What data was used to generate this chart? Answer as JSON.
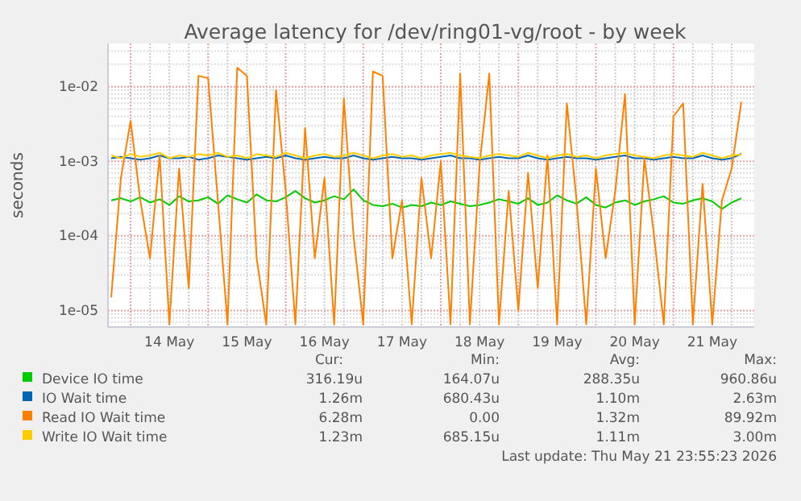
{
  "chart_data": {
    "type": "line",
    "title": "Average latency for /dev/ring01-vg/root - by week",
    "ylabel": "seconds",
    "log": true,
    "grid": true,
    "legend": "bottom",
    "xlim": [
      "2026-05-13T17:00",
      "2026-05-22T01:00"
    ],
    "xticks": [
      {
        "value": "2026-05-14T12:00",
        "label": "14 May"
      },
      {
        "value": "2026-05-15T12:00",
        "label": "15 May"
      },
      {
        "value": "2026-05-16T12:00",
        "label": "16 May"
      },
      {
        "value": "2026-05-17T12:00",
        "label": "17 May"
      },
      {
        "value": "2026-05-18T12:00",
        "label": "18 May"
      },
      {
        "value": "2026-05-19T12:00",
        "label": "19 May"
      },
      {
        "value": "2026-05-20T12:00",
        "label": "20 May"
      },
      {
        "value": "2026-05-21T12:00",
        "label": "21 May"
      }
    ],
    "ylim": [
      6e-06,
      0.038
    ],
    "yticks": [
      {
        "value": 1e-05,
        "label": "1e-05"
      },
      {
        "value": 0.0001,
        "label": "1e-04"
      },
      {
        "value": 0.001,
        "label": "1e-03"
      },
      {
        "value": 0.01,
        "label": "1e-02"
      }
    ],
    "x": [
      "2026-05-13T18:00",
      "2026-05-13T21:00",
      "2026-05-14T00:00",
      "2026-05-14T03:00",
      "2026-05-14T06:00",
      "2026-05-14T09:00",
      "2026-05-14T12:00",
      "2026-05-14T15:00",
      "2026-05-14T18:00",
      "2026-05-14T21:00",
      "2026-05-15T00:00",
      "2026-05-15T03:00",
      "2026-05-15T06:00",
      "2026-05-15T09:00",
      "2026-05-15T12:00",
      "2026-05-15T15:00",
      "2026-05-15T18:00",
      "2026-05-15T21:00",
      "2026-05-16T00:00",
      "2026-05-16T03:00",
      "2026-05-16T06:00",
      "2026-05-16T09:00",
      "2026-05-16T12:00",
      "2026-05-16T15:00",
      "2026-05-16T18:00",
      "2026-05-16T21:00",
      "2026-05-17T00:00",
      "2026-05-17T03:00",
      "2026-05-17T06:00",
      "2026-05-17T09:00",
      "2026-05-17T12:00",
      "2026-05-17T15:00",
      "2026-05-17T18:00",
      "2026-05-17T21:00",
      "2026-05-18T00:00",
      "2026-05-18T03:00",
      "2026-05-18T06:00",
      "2026-05-18T09:00",
      "2026-05-18T12:00",
      "2026-05-18T15:00",
      "2026-05-18T18:00",
      "2026-05-18T21:00",
      "2026-05-19T00:00",
      "2026-05-19T03:00",
      "2026-05-19T06:00",
      "2026-05-19T09:00",
      "2026-05-19T12:00",
      "2026-05-19T15:00",
      "2026-05-19T18:00",
      "2026-05-19T21:00",
      "2026-05-20T00:00",
      "2026-05-20T03:00",
      "2026-05-20T06:00",
      "2026-05-20T09:00",
      "2026-05-20T12:00",
      "2026-05-20T15:00",
      "2026-05-20T18:00",
      "2026-05-20T21:00",
      "2026-05-21T00:00",
      "2026-05-21T03:00",
      "2026-05-21T06:00",
      "2026-05-21T09:00",
      "2026-05-21T12:00",
      "2026-05-21T15:00",
      "2026-05-21T18:00",
      "2026-05-21T21:00"
    ],
    "series": [
      {
        "name": "Device IO time",
        "color": "#00cc00",
        "values": [
          0.0003,
          0.00032,
          0.00029,
          0.00033,
          0.00028,
          0.00031,
          0.00026,
          0.00034,
          0.00029,
          0.0003,
          0.00033,
          0.00027,
          0.00035,
          0.00031,
          0.00028,
          0.00036,
          0.0003,
          0.00029,
          0.00033,
          0.0004,
          0.00032,
          0.00028,
          0.0003,
          0.00034,
          0.00031,
          0.00042,
          0.0003,
          0.00026,
          0.00025,
          0.00027,
          0.00024,
          0.00026,
          0.00025,
          0.00028,
          0.00026,
          0.00029,
          0.00027,
          0.00025,
          0.00026,
          0.00028,
          0.00031,
          0.00029,
          0.00027,
          0.00032,
          0.00026,
          0.00028,
          0.00035,
          0.0003,
          0.00027,
          0.00033,
          0.00026,
          0.00024,
          0.00028,
          0.0003,
          0.00026,
          0.00029,
          0.00031,
          0.00034,
          0.00028,
          0.00027,
          0.0003,
          0.00032,
          0.00029,
          0.00023,
          0.00028,
          0.00032
        ]
      },
      {
        "name": "IO Wait time",
        "color": "#0066b3",
        "values": [
          0.0011,
          0.00115,
          0.0011,
          0.00105,
          0.0011,
          0.0012,
          0.0011,
          0.0011,
          0.00115,
          0.00105,
          0.0011,
          0.0012,
          0.00115,
          0.0011,
          0.00105,
          0.0011,
          0.00115,
          0.0011,
          0.0012,
          0.0011,
          0.00105,
          0.0011,
          0.00115,
          0.0011,
          0.0011,
          0.0012,
          0.0011,
          0.00105,
          0.0011,
          0.00115,
          0.0011,
          0.0011,
          0.00105,
          0.0011,
          0.00115,
          0.0012,
          0.0011,
          0.0011,
          0.00105,
          0.0011,
          0.00115,
          0.0011,
          0.0011,
          0.0012,
          0.0011,
          0.00105,
          0.0011,
          0.00115,
          0.0011,
          0.0011,
          0.00105,
          0.0011,
          0.00115,
          0.0012,
          0.0011,
          0.0011,
          0.00105,
          0.0011,
          0.00115,
          0.0011,
          0.0011,
          0.0012,
          0.0011,
          0.00105,
          0.0011,
          0.00126
        ]
      },
      {
        "name": "Read IO Wait time",
        "color": "#ff8000",
        "values": [
          1.5e-05,
          0.0006,
          0.0035,
          0.0003,
          5e-05,
          0.0012,
          6.5e-06,
          0.0008,
          2e-05,
          0.014,
          0.013,
          0.0003,
          6.5e-06,
          0.018,
          0.014,
          5e-05,
          6.5e-06,
          0.009,
          0.0004,
          6.5e-06,
          0.0028,
          5e-05,
          0.0006,
          6.5e-06,
          0.007,
          0.0001,
          6.5e-06,
          0.016,
          0.014,
          5e-05,
          0.0003,
          6.5e-06,
          0.0006,
          5e-05,
          0.001,
          6.5e-06,
          0.015,
          6.5e-06,
          0.0009,
          0.015,
          6.5e-06,
          0.0004,
          1e-05,
          0.0007,
          2e-05,
          0.0012,
          6.5e-06,
          0.006,
          0.0003,
          6.5e-06,
          0.0008,
          5e-05,
          0.0004,
          0.008,
          6.5e-06,
          0.0011,
          0.0001,
          6.5e-06,
          0.004,
          0.006,
          6.5e-06,
          0.0005,
          6.5e-06,
          0.0003,
          0.0008,
          0.00628
        ]
      },
      {
        "name": "Write IO Wait time",
        "color": "#ffcc00",
        "values": [
          0.0012,
          0.0011,
          0.00125,
          0.00115,
          0.0012,
          0.0013,
          0.0011,
          0.0012,
          0.00115,
          0.00125,
          0.0012,
          0.0013,
          0.00115,
          0.0012,
          0.0011,
          0.00125,
          0.0012,
          0.00115,
          0.0013,
          0.0012,
          0.0011,
          0.0012,
          0.00125,
          0.00115,
          0.0012,
          0.0013,
          0.0012,
          0.0011,
          0.0012,
          0.00125,
          0.00115,
          0.0012,
          0.0011,
          0.0012,
          0.00125,
          0.0013,
          0.0012,
          0.00115,
          0.0011,
          0.0012,
          0.00125,
          0.0012,
          0.00115,
          0.0013,
          0.0012,
          0.0011,
          0.0012,
          0.00125,
          0.00115,
          0.0012,
          0.0011,
          0.0012,
          0.00125,
          0.0013,
          0.0012,
          0.00115,
          0.0011,
          0.0012,
          0.00125,
          0.0012,
          0.00115,
          0.0013,
          0.0012,
          0.0011,
          0.0012,
          0.00123
        ]
      }
    ],
    "annotations": [
      "Cur:",
      "Min:",
      "Avg:",
      "Max:",
      "316.19u",
      "164.07u",
      "288.35u",
      "960.86u",
      "1.26m",
      "680.43u",
      "1.10m",
      "2.63m",
      "6.28m",
      "0.00",
      "1.32m",
      "89.92m",
      "1.23m",
      "685.15u",
      "1.11m",
      "3.00m",
      "Last update: Thu May 21 23:55:23 2026"
    ]
  }
}
